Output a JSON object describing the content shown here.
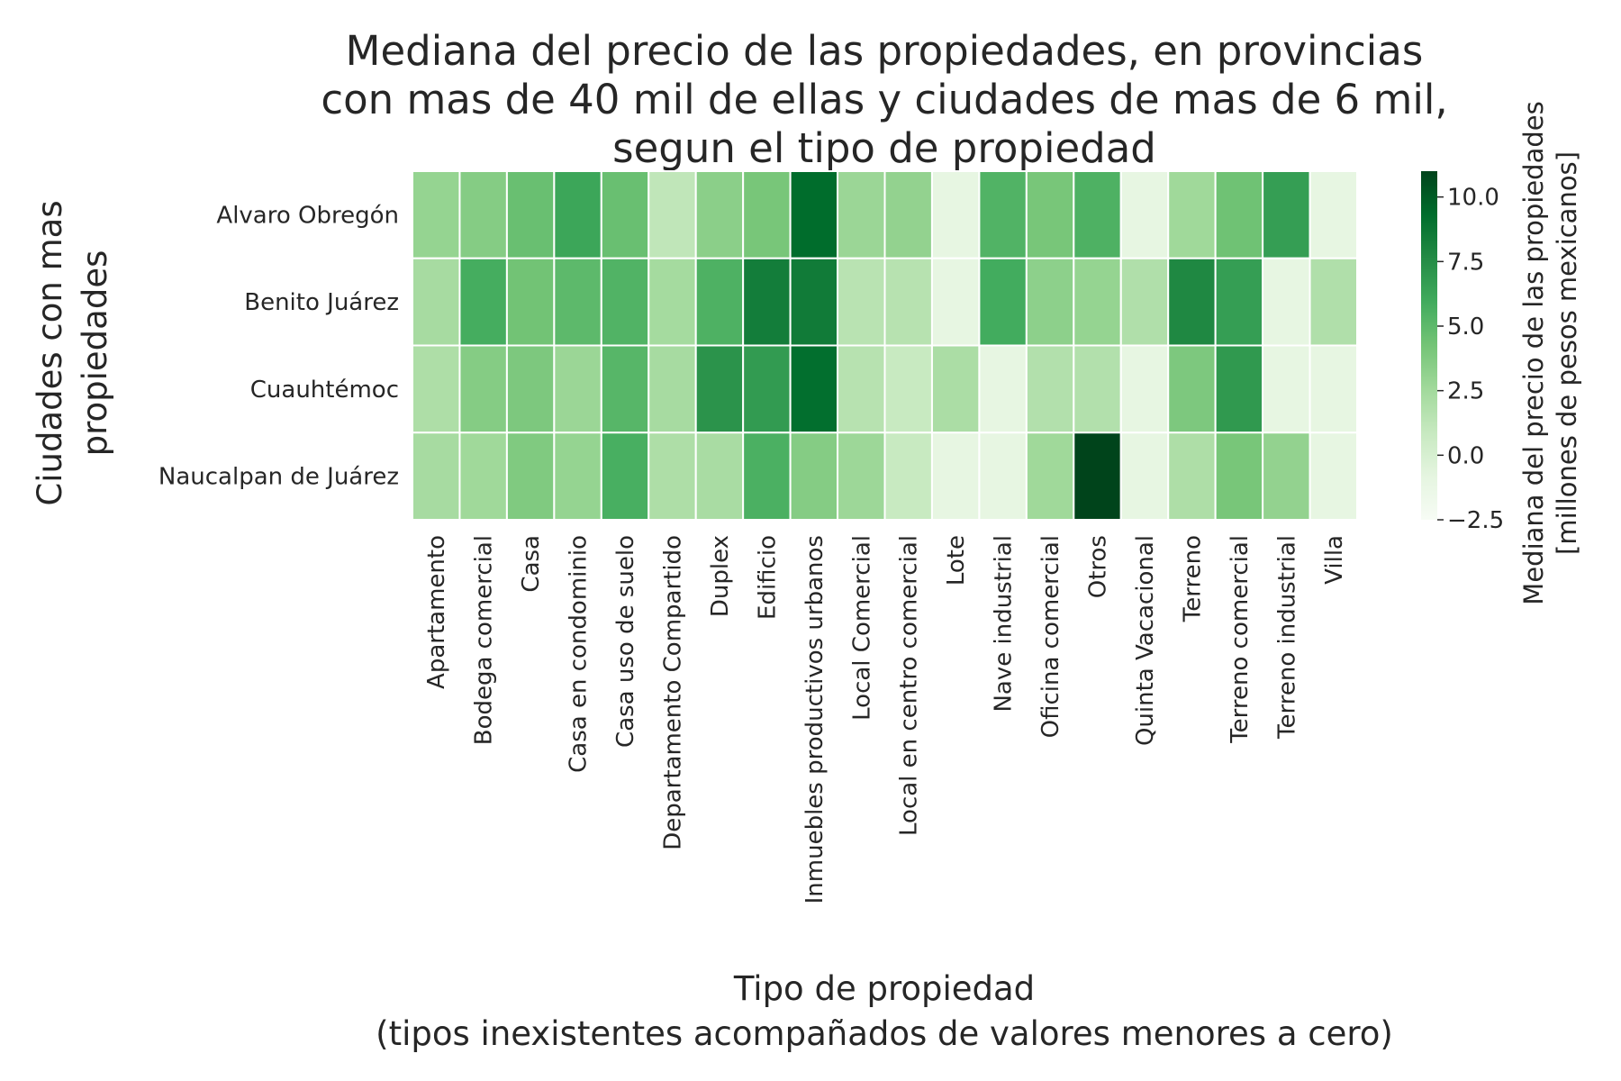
{
  "chart_data": {
    "type": "heatmap",
    "title": [
      "Mediana del precio de las propiedades, en provincias",
      "con mas de 40 mil de ellas y ciudades de mas de 6 mil,",
      "segun el tipo de propiedad"
    ],
    "xlabel": [
      "Tipo de propiedad",
      "(tipos inexistentes acompañados de valores menores a cero)"
    ],
    "ylabel": [
      "Ciudades con mas",
      "propiedades"
    ],
    "colorbar_label": [
      "Mediana del precio de las propiedades",
      "[millones de pesos mexicanos]"
    ],
    "x_categories": [
      "Apartamento",
      "Bodega comercial",
      "Casa",
      "Casa en condominio",
      "Casa uso de suelo",
      "Departamento Compartido",
      "Duplex",
      "Edificio",
      "Inmuebles productivos urbanos",
      "Local Comercial",
      "Local en centro comercial",
      "Lote",
      "Nave industrial",
      "Oficina comercial",
      "Otros",
      "Quinta Vacacional",
      "Terreno",
      "Terreno comercial",
      "Terreno industrial",
      "Villa"
    ],
    "y_categories": [
      "Alvaro Obregón",
      "Benito Juárez",
      "Cuauhtémoc",
      "Naucalpan de Juárez"
    ],
    "values": [
      [
        3.0,
        3.6,
        4.6,
        6.2,
        4.6,
        1.2,
        3.4,
        4.1,
        9.3,
        2.8,
        3.1,
        -1.0,
        5.4,
        4.1,
        5.5,
        -1.0,
        2.6,
        4.4,
        6.6,
        -1.0
      ],
      [
        2.3,
        5.8,
        4.3,
        5.0,
        5.4,
        2.4,
        5.5,
        8.4,
        8.5,
        1.5,
        1.6,
        -1.0,
        5.9,
        3.3,
        3.0,
        1.9,
        7.8,
        6.6,
        -1.0,
        1.9
      ],
      [
        2.0,
        3.6,
        3.9,
        2.8,
        5.2,
        2.3,
        7.2,
        6.8,
        9.2,
        1.6,
        0.8,
        2.1,
        -1.0,
        1.8,
        1.8,
        -1.0,
        3.9,
        6.9,
        -1.0,
        -1.0
      ],
      [
        2.3,
        2.6,
        3.8,
        3.0,
        5.7,
        2.0,
        2.2,
        5.6,
        3.6,
        2.7,
        0.8,
        -1.0,
        -1.0,
        2.6,
        11.0,
        -1.0,
        2.0,
        4.1,
        3.1,
        -1.0
      ]
    ],
    "vmin": -2.5,
    "vmax": 11.0,
    "colorbar_ticks": [
      "−2.5",
      "0.0",
      "2.5",
      "5.0",
      "7.5",
      "10.0"
    ],
    "colorbar_tick_values": [
      -2.5,
      0.0,
      2.5,
      5.0,
      7.5,
      10.0
    ],
    "colormap": [
      "#f7fcf5",
      "#e5f5e0",
      "#c7e9c0",
      "#a1d99b",
      "#74c476",
      "#41ab5d",
      "#238b45",
      "#006d2c",
      "#00441b"
    ],
    "cell_border_color": "#ffffff",
    "grid": false,
    "colorbar_position": "right"
  }
}
